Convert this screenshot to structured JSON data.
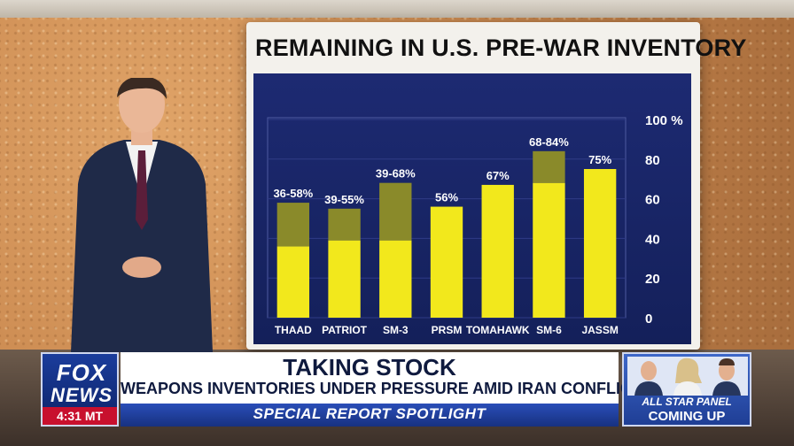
{
  "board": {
    "title": "REMAINING IN U.S. PRE-WAR INVENTORY"
  },
  "chart_data": {
    "type": "bar",
    "title": "REMAINING IN U.S. PRE-WAR INVENTORY",
    "categories": [
      "THAAD",
      "PATRIOT",
      "SM-3",
      "PRSM",
      "TOMAHAWK",
      "SM-6",
      "JASSM"
    ],
    "labels": [
      "36-58%",
      "39-55%",
      "39-68%",
      "56%",
      "67%",
      "68-84%",
      "75%"
    ],
    "low": [
      36,
      39,
      39,
      56,
      67,
      68,
      75
    ],
    "high": [
      58,
      55,
      68,
      56,
      67,
      84,
      75
    ],
    "ylim": [
      0,
      100
    ],
    "yticks": [
      "0",
      "20",
      "40",
      "60",
      "80",
      "100 %"
    ],
    "ytick_values": [
      0,
      20,
      40,
      60,
      80,
      100
    ],
    "grid": true,
    "colors": {
      "bar": "#f2e81c",
      "range": "#8a8a2a",
      "background": "#1a2668"
    }
  },
  "lower_third": {
    "logo_fox": "FOX",
    "logo_news": "NEWS",
    "time": "4:31 MT",
    "headline": "TAKING STOCK",
    "subheadline": "WEAPONS INVENTORIES UNDER PRESSURE AMID IRAN CONFLICT",
    "segment": "SPECIAL REPORT SPOTLIGHT",
    "promo_line_1": "ALL STAR PANEL",
    "promo_line_2": "COMING UP"
  }
}
